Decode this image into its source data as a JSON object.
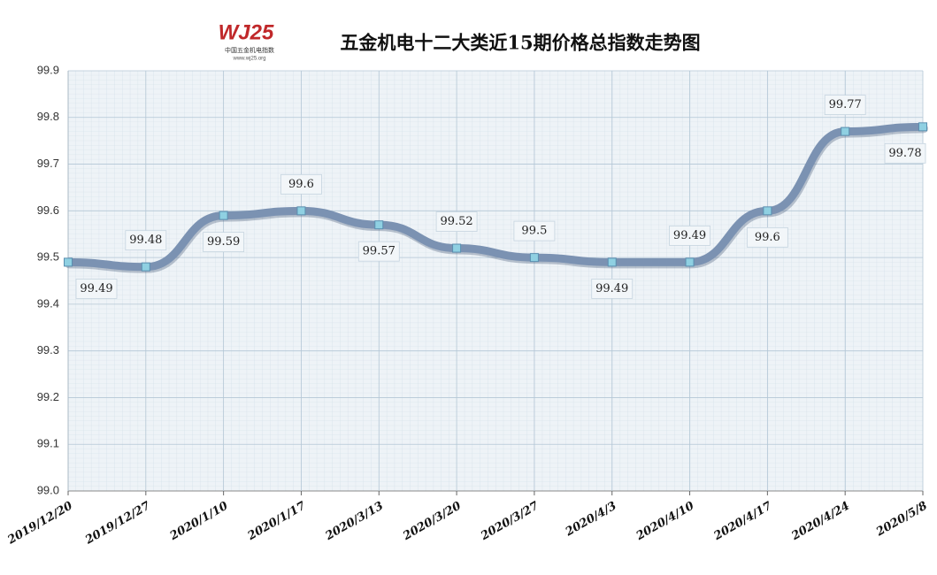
{
  "chart_data": {
    "type": "line",
    "title": "五金机电十二大类近15期价格总指数走势图",
    "logo": {
      "mark": "WJ25",
      "name": "中国五金机电指数",
      "url": "www.wj25.org"
    },
    "categories": [
      "2019/12/20",
      "2019/12/27",
      "2020/1/10",
      "2020/1/17",
      "2020/3/13",
      "2020/3/20",
      "2020/3/27",
      "2020/4/3",
      "2020/4/10",
      "2020/4/17",
      "2020/4/24",
      "2020/5/8"
    ],
    "series": [
      {
        "name": "价格总指数",
        "color": "#7b92b2",
        "values": [
          99.49,
          99.48,
          99.59,
          99.6,
          99.57,
          99.52,
          99.5,
          99.49,
          99.49,
          99.6,
          99.77,
          99.78
        ]
      }
    ],
    "ylim": [
      99.0,
      99.9
    ],
    "yticks": [
      {
        "value": 99.0,
        "label": "99.0"
      },
      99.1,
      99.2,
      99.3,
      99.4,
      99.5,
      99.6,
      99.7,
      99.8,
      99.9
    ],
    "grid": true
  }
}
